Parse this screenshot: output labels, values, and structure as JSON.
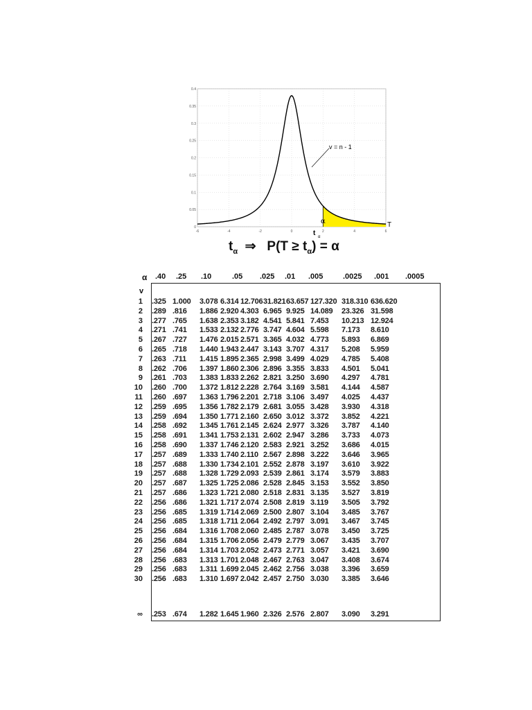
{
  "figure": {
    "y_ticks": [
      "0.4",
      "0.35",
      "0.3",
      "0.25",
      "0.2",
      "0.15",
      "0.1",
      "0.05",
      "0"
    ],
    "x_ticks": [
      "-6",
      "-4",
      "-2",
      "0",
      "2",
      "4",
      "6"
    ],
    "curve_label": "v = n - 1",
    "alpha_label": "α",
    "t_alpha_label": "t",
    "t_alpha_sub": "α",
    "axis_label": "T",
    "shaded_color": "#ffee00",
    "curve_color": "#000000"
  },
  "caption": {
    "left": "t",
    "left_sub": "α",
    "arrow": "⇒",
    "right_prefix": "P(T ≥ t",
    "right_sub": "α",
    "right_suffix": ") = α"
  },
  "table": {
    "alpha_symbol": "α",
    "nu_symbol": "v",
    "alpha_headers": [
      ".40",
      ".25",
      ".10",
      ".05",
      ".025",
      ".01",
      ".005",
      ".0025",
      ".001",
      ".0005"
    ],
    "rows": [
      {
        "df": "1",
        "values": [
          ".325",
          "1.000",
          "3.078",
          "6.314",
          "12.706",
          "31.821",
          "63.657",
          "127.320",
          "318.310",
          "636.620"
        ]
      },
      {
        "df": "2",
        "values": [
          ".289",
          ".816",
          "1.886",
          "2.920",
          "4.303",
          "6.965",
          "9.925",
          "14.089",
          "23.326",
          "31.598"
        ]
      },
      {
        "df": "3",
        "values": [
          ".277",
          ".765",
          "1.638",
          "2.353",
          "3.182",
          "4.541",
          "5.841",
          "7.453",
          "10.213",
          "12.924"
        ]
      },
      {
        "df": "4",
        "values": [
          ".271",
          ".741",
          "1.533",
          "2.132",
          "2.776",
          "3.747",
          "4.604",
          "5.598",
          "7.173",
          "8.610"
        ]
      },
      {
        "df": "5",
        "values": [
          ".267",
          ".727",
          "1.476",
          "2.015",
          "2.571",
          "3.365",
          "4.032",
          "4.773",
          "5.893",
          "6.869"
        ]
      },
      {
        "df": "6",
        "values": [
          ".265",
          ".718",
          "1.440",
          "1.943",
          "2.447",
          "3.143",
          "3.707",
          "4.317",
          "5.208",
          "5.959"
        ]
      },
      {
        "df": "7",
        "values": [
          ".263",
          ".711",
          "1.415",
          "1.895",
          "2.365",
          "2.998",
          "3.499",
          "4.029",
          "4.785",
          "5.408"
        ]
      },
      {
        "df": "8",
        "values": [
          ".262",
          ".706",
          "1.397",
          "1.860",
          "2.306",
          "2.896",
          "3.355",
          "3.833",
          "4.501",
          "5.041"
        ]
      },
      {
        "df": "9",
        "values": [
          ".261",
          ".703",
          "1.383",
          "1.833",
          "2.262",
          "2.821",
          "3.250",
          "3.690",
          "4.297",
          "4.781"
        ]
      },
      {
        "df": "10",
        "values": [
          ".260",
          ".700",
          "1.372",
          "1.812",
          "2.228",
          "2.764",
          "3.169",
          "3.581",
          "4.144",
          "4.587"
        ]
      },
      {
        "df": "11",
        "values": [
          ".260",
          ".697",
          "1.363",
          "1.796",
          "2.201",
          "2.718",
          "3.106",
          "3.497",
          "4.025",
          "4.437"
        ]
      },
      {
        "df": "12",
        "values": [
          ".259",
          ".695",
          "1.356",
          "1.782",
          "2.179",
          "2.681",
          "3.055",
          "3.428",
          "3.930",
          "4.318"
        ]
      },
      {
        "df": "13",
        "values": [
          ".259",
          ".694",
          "1.350",
          "1.771",
          "2.160",
          "2.650",
          "3.012",
          "3.372",
          "3.852",
          "4.221"
        ]
      },
      {
        "df": "14",
        "values": [
          ".258",
          ".692",
          "1.345",
          "1.761",
          "2.145",
          "2.624",
          "2.977",
          "3.326",
          "3.787",
          "4.140"
        ]
      },
      {
        "df": "15",
        "values": [
          ".258",
          ".691",
          "1.341",
          "1.753",
          "2.131",
          "2.602",
          "2.947",
          "3.286",
          "3.733",
          "4.073"
        ]
      },
      {
        "df": "16",
        "values": [
          ".258",
          ".690",
          "1.337",
          "1.746",
          "2.120",
          "2.583",
          "2.921",
          "3.252",
          "3.686",
          "4.015"
        ]
      },
      {
        "df": "17",
        "values": [
          ".257",
          ".689",
          "1.333",
          "1.740",
          "2.110",
          "2.567",
          "2.898",
          "3.222",
          "3.646",
          "3.965"
        ]
      },
      {
        "df": "18",
        "values": [
          ".257",
          ".688",
          "1.330",
          "1.734",
          "2.101",
          "2.552",
          "2.878",
          "3.197",
          "3.610",
          "3.922"
        ]
      },
      {
        "df": "19",
        "values": [
          ".257",
          ".688",
          "1.328",
          "1.729",
          "2.093",
          "2.539",
          "2.861",
          "3.174",
          "3.579",
          "3.883"
        ]
      },
      {
        "df": "20",
        "values": [
          ".257",
          ".687",
          "1.325",
          "1.725",
          "2.086",
          "2.528",
          "2.845",
          "3.153",
          "3.552",
          "3.850"
        ]
      },
      {
        "df": "21",
        "values": [
          ".257",
          ".686",
          "1.323",
          "1.721",
          "2.080",
          "2.518",
          "2.831",
          "3.135",
          "3.527",
          "3.819"
        ]
      },
      {
        "df": "22",
        "values": [
          ".256",
          ".686",
          "1.321",
          "1.717",
          "2.074",
          "2.508",
          "2.819",
          "3.119",
          "3.505",
          "3.792"
        ]
      },
      {
        "df": "23",
        "values": [
          ".256",
          ".685",
          "1.319",
          "1.714",
          "2.069",
          "2.500",
          "2.807",
          "3.104",
          "3.485",
          "3.767"
        ]
      },
      {
        "df": "24",
        "values": [
          ".256",
          ".685",
          "1.318",
          "1.711",
          "2.064",
          "2.492",
          "2.797",
          "3.091",
          "3.467",
          "3.745"
        ]
      },
      {
        "df": "25",
        "values": [
          ".256",
          ".684",
          "1.316",
          "1.708",
          "2.060",
          "2.485",
          "2.787",
          "3.078",
          "3.450",
          "3.725"
        ]
      },
      {
        "df": "26",
        "values": [
          ".256",
          ".684",
          "1.315",
          "1.706",
          "2.056",
          "2.479",
          "2.779",
          "3.067",
          "3.435",
          "3.707"
        ]
      },
      {
        "df": "27",
        "values": [
          ".256",
          ".684",
          "1.314",
          "1.703",
          "2.052",
          "2.473",
          "2.771",
          "3.057",
          "3.421",
          "3.690"
        ]
      },
      {
        "df": "28",
        "values": [
          ".256",
          ".683",
          "1.313",
          "1.701",
          "2.048",
          "2.467",
          "2.763",
          "3.047",
          "3.408",
          "3.674"
        ]
      },
      {
        "df": "29",
        "values": [
          ".256",
          ".683",
          "1.311",
          "1.699",
          "2.045",
          "2.462",
          "2.756",
          "3.038",
          "3.396",
          "3.659"
        ]
      },
      {
        "df": "30",
        "values": [
          ".256",
          ".683",
          "1.310",
          "1.697",
          "2.042",
          "2.457",
          "2.750",
          "3.030",
          "3.385",
          "3.646"
        ]
      },
      {
        "df": "∞",
        "values": [
          ".253",
          ".674",
          "1.282",
          "1.645",
          "1.960",
          "2.326",
          "2.576",
          "2.807",
          "3.090",
          "3.291"
        ]
      }
    ]
  }
}
